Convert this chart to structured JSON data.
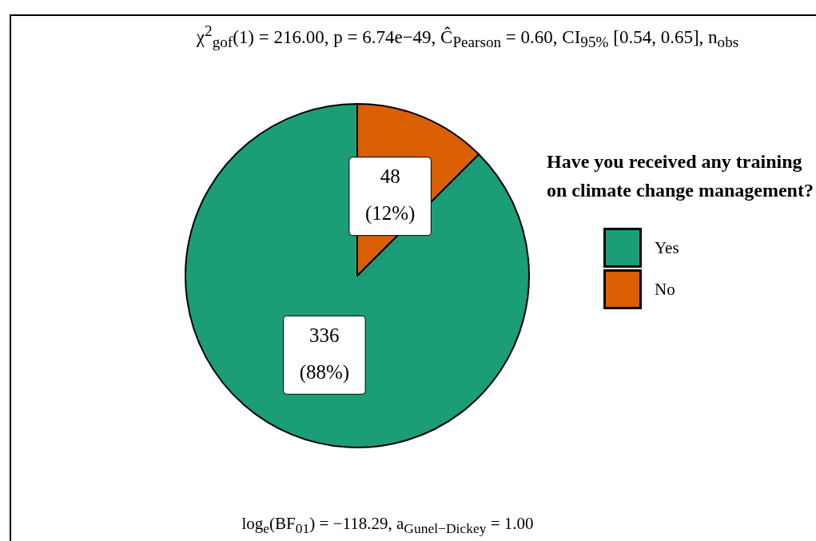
{
  "chart_data": {
    "type": "pie",
    "subtitle": "χ$^{2}$$_{gof}$(1) = 216.00, p = 6.74e−49, Ĉ$_{Pearson}$ = 0.60, CI$_{95%}$ [0.54, 0.65], n$_{obs}$",
    "categories": [
      "Yes",
      "No"
    ],
    "values": [
      336,
      48
    ],
    "colors": [
      "#1b9e77",
      "#d95f02"
    ],
    "value_labels": [
      "336\n(88%)",
      "48\n(12%)"
    ],
    "legend": "right",
    "legend_title": "Have you received any training on climate change management?",
    "annotations": [
      "log$_{e}$(BF$_{01}$) = −118.29, a$_{Gunel−Dickey}$ = 1.00"
    ]
  }
}
